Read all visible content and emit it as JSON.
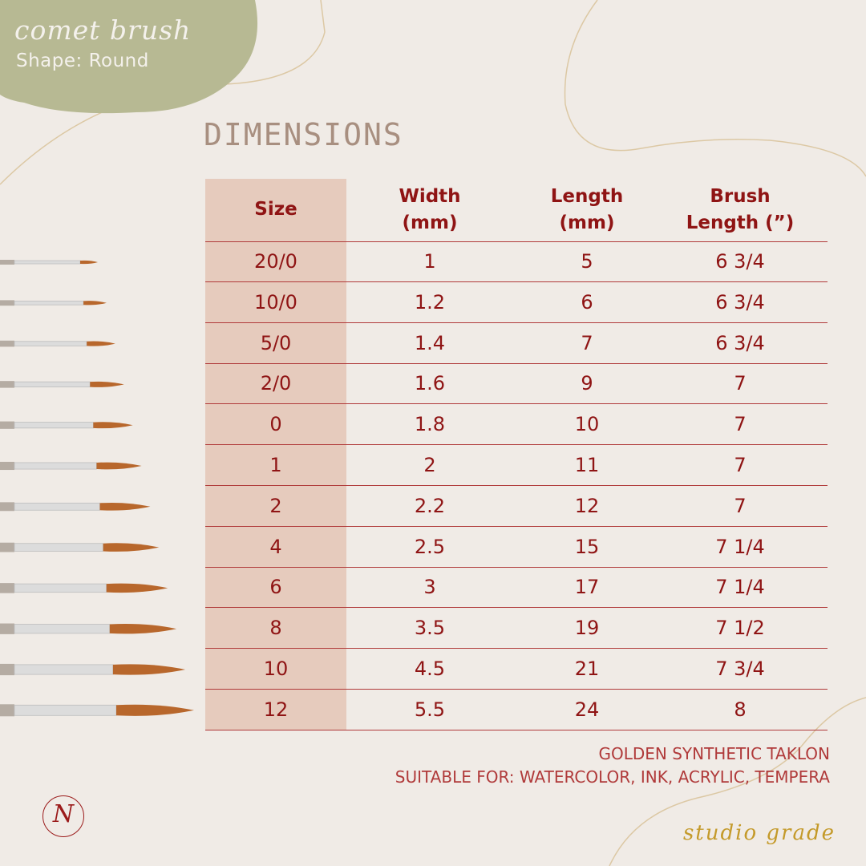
{
  "brand": {
    "title": "comet brush",
    "shape": "Shape: Round"
  },
  "heading": "DIMENSIONS",
  "table": {
    "headers": [
      "Size",
      "Width\n(mm)",
      "Length\n(mm)",
      "Brush\nLength (”)"
    ],
    "rows": [
      [
        "20/0",
        "1",
        "5",
        "6  3/4"
      ],
      [
        "10/0",
        "1.2",
        "6",
        "6  3/4"
      ],
      [
        "5/0",
        "1.4",
        "7",
        "6  3/4"
      ],
      [
        "2/0",
        "1.6",
        "9",
        "7"
      ],
      [
        "0",
        "1.8",
        "10",
        "7"
      ],
      [
        "1",
        "2",
        "11",
        "7"
      ],
      [
        "2",
        "2.2",
        "12",
        "7"
      ],
      [
        "4",
        "2.5",
        "15",
        "7 1/4"
      ],
      [
        "6",
        "3",
        "17",
        "7 1/4"
      ],
      [
        "8",
        "3.5",
        "19",
        "7 1/2"
      ],
      [
        "10",
        "4.5",
        "21",
        "7  3/4"
      ],
      [
        "12",
        "5.5",
        "24",
        "8"
      ]
    ]
  },
  "notes": {
    "material": "GOLDEN SYNTHETIC TAKLON",
    "suitable": "SUITABLE FOR: WATERCOLOR, INK, ACRYLIC, TEMPERA"
  },
  "logo_letter": "N",
  "tagline": "studio grade",
  "colors": {
    "background": "#f0ebe6",
    "accent_red": "#8f1414",
    "size_band": "#e6cbbd",
    "blob": "#b7b993",
    "gold": "#c49a2a"
  }
}
